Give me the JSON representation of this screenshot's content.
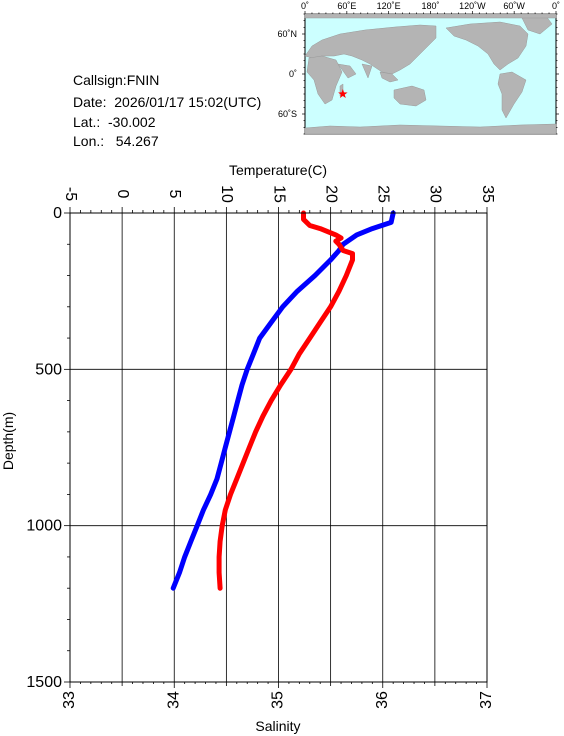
{
  "station": {
    "callsign": "Callsign:FNIN",
    "date": "Date:  2026/01/17 15:02(UTC)",
    "lat": "Lat.:  -30.002",
    "lon": "Lon.:   54.267"
  },
  "map": {
    "lon_ticks": [
      "0˚",
      "60˚E",
      "120˚E",
      "180˚",
      "120˚W",
      "60˚W",
      "0˚"
    ],
    "lat_ticks": [
      "60˚N",
      "0˚",
      "60˚S"
    ],
    "ocean_color": "#ccffff",
    "land_color": "#b4b4b4",
    "marker": {
      "lon": 54.267,
      "lat": -30.002,
      "color": "#ff0000",
      "icon": "star-icon"
    }
  },
  "chart_data": {
    "type": "line",
    "top_axis": {
      "label": "Temperature(C)",
      "range": [
        -5,
        35
      ],
      "ticks": [
        "-5",
        "0",
        "5",
        "10",
        "15",
        "20",
        "25",
        "30",
        "35"
      ]
    },
    "bottom_axis": {
      "label": "Salinity",
      "range": [
        33,
        37
      ],
      "ticks": [
        "33",
        "34",
        "35",
        "36",
        "37"
      ]
    },
    "y_axis": {
      "label": "Depth(m)",
      "range": [
        0,
        1500
      ],
      "inverted": true,
      "ticks": [
        "0",
        "500",
        "1000",
        "1500"
      ]
    },
    "grid": true,
    "series": [
      {
        "color": "#0000ff",
        "axis": "temperature",
        "depth": [
          0,
          30,
          50,
          70,
          100,
          120,
          150,
          200,
          250,
          300,
          350,
          400,
          450,
          500,
          550,
          600,
          650,
          700,
          750,
          800,
          850,
          900,
          950,
          1000,
          1050,
          1100,
          1150,
          1200
        ],
        "values": [
          26.0,
          25.8,
          24.0,
          22.5,
          21.2,
          20.8,
          20.0,
          18.5,
          16.8,
          15.4,
          14.3,
          13.2,
          12.6,
          12.0,
          11.5,
          11.1,
          10.7,
          10.3,
          9.9,
          9.5,
          9.1,
          8.5,
          7.8,
          7.2,
          6.6,
          6.0,
          5.5,
          4.9
        ]
      },
      {
        "color": "#ff0000",
        "axis": "salinity",
        "depth": [
          0,
          20,
          40,
          50,
          70,
          80,
          90,
          100,
          110,
          120,
          130,
          150,
          200,
          250,
          300,
          350,
          400,
          450,
          500,
          550,
          600,
          650,
          700,
          750,
          800,
          850,
          900,
          950,
          1000,
          1050,
          1100,
          1150,
          1200
        ],
        "values": [
          35.24,
          35.24,
          35.3,
          35.4,
          35.55,
          35.6,
          35.55,
          35.58,
          35.6,
          35.62,
          35.71,
          35.71,
          35.65,
          35.58,
          35.5,
          35.4,
          35.3,
          35.2,
          35.12,
          35.02,
          34.93,
          34.85,
          34.78,
          34.72,
          34.66,
          34.6,
          34.54,
          34.49,
          34.46,
          34.44,
          34.43,
          34.43,
          34.44
        ]
      }
    ]
  }
}
